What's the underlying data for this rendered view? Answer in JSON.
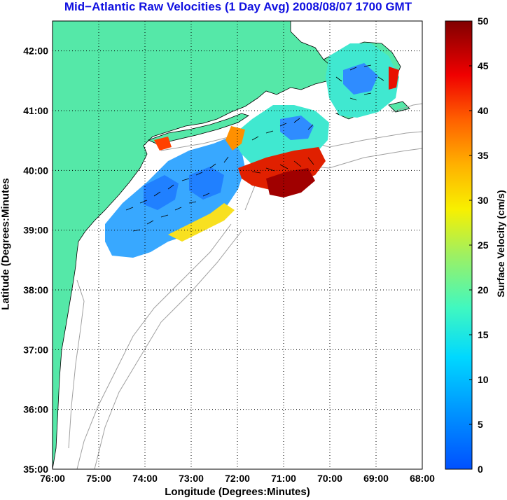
{
  "title": "Mid−Atlantic Raw Velocities (1 Day Avg) 2008/08/07 1700 GMT",
  "axes": {
    "xlabel": "Longitude (Degrees:Minutes)",
    "ylabel": "Latitude (Degrees:Minutes",
    "x_ticks": [
      "76:00",
      "75:00",
      "74:00",
      "73:00",
      "72:00",
      "71:00",
      "70:00",
      "69:00",
      "68:00"
    ],
    "y_ticks": [
      "42:00",
      "41:00",
      "40:00",
      "39:00",
      "38:00",
      "37:00",
      "36:00",
      "35:00"
    ],
    "xlim": [
      -76,
      -68
    ],
    "ylim": [
      35,
      42.5
    ],
    "grid": "dotted"
  },
  "colorbar": {
    "label": "Surface Velocity (cm/s)",
    "ticks": [
      "50",
      "45",
      "40",
      "35",
      "30",
      "25",
      "20",
      "15",
      "10",
      "5",
      "0"
    ],
    "range": [
      0,
      50
    ],
    "colormap": "jet"
  },
  "colors": {
    "land": "#55e8a8",
    "water": "#ffffff",
    "title": "#1010e0",
    "bathymetry": "#a0a0a0"
  }
}
